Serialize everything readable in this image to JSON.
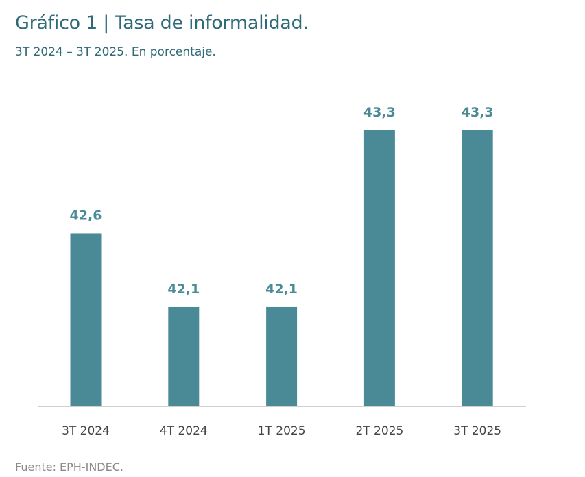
{
  "chart_data": {
    "type": "bar",
    "title": "Gráfico 1 | Tasa de informalidad.",
    "subtitle": "3T 2024 – 3T 2025. En porcentaje.",
    "categories": [
      "3T 2024",
      "4T 2024",
      "1T 2025",
      "2T 2025",
      "3T 2025"
    ],
    "values": [
      42.6,
      42.1,
      42.1,
      43.3,
      43.3
    ],
    "data_labels": [
      "42,6",
      "42,1",
      "42,1",
      "43,3",
      "43,3"
    ],
    "xlabel": "",
    "ylabel": "",
    "grid": false,
    "bar_color": "#4a8a96",
    "label_color": "#4a8a96",
    "source": "Fuente: EPH-INDEC."
  }
}
